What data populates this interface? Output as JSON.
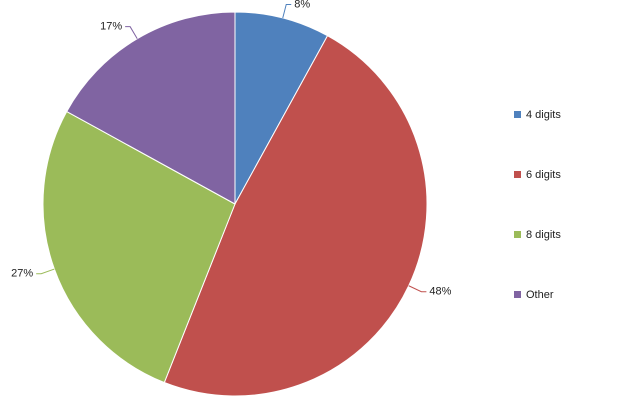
{
  "chart_data": {
    "type": "pie",
    "categories": [
      "4 digits",
      "6 digits",
      "8 digits",
      "Other"
    ],
    "values": [
      8,
      48,
      27,
      17
    ],
    "value_labels": [
      "8%",
      "48%",
      "27%",
      "17%"
    ],
    "colors": [
      "#4f81bd",
      "#c0504d",
      "#9bbb59",
      "#8064a2"
    ],
    "legend": "right"
  }
}
